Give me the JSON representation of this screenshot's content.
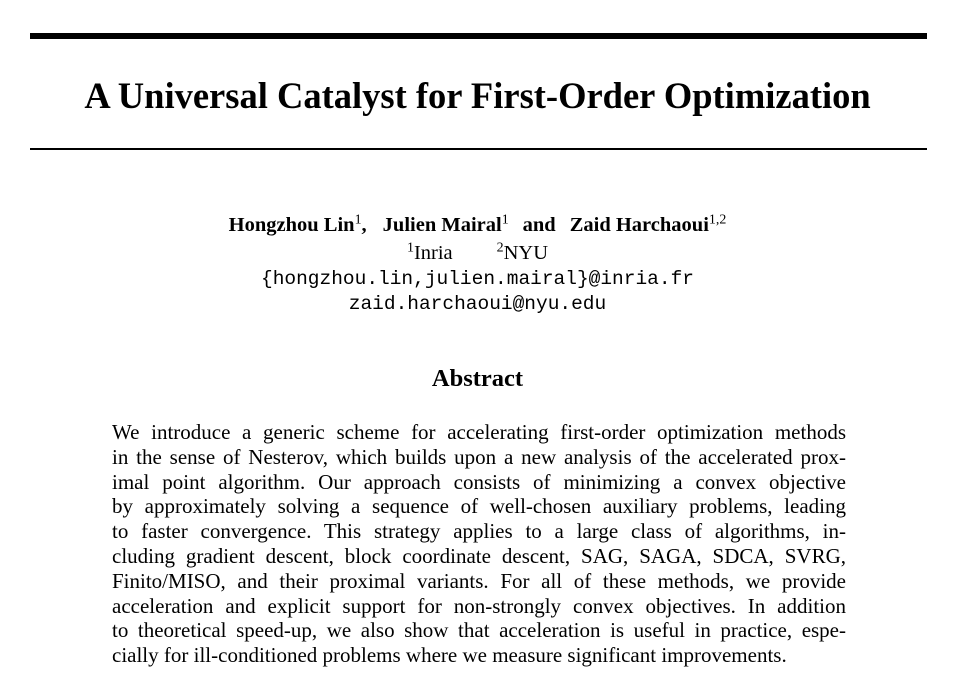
{
  "paper": {
    "title": "A Universal Catalyst for First-Order Optimization",
    "authors": [
      {
        "name": "Hongzhou Lin",
        "sup": "1"
      },
      {
        "name": "Julien Mairal",
        "sup": "1"
      },
      {
        "name": "Zaid Harchaoui",
        "sup": "1,2"
      }
    ],
    "author_separator": ",",
    "and_word": "and",
    "affiliations": [
      {
        "sup": "1",
        "name": "Inria"
      },
      {
        "sup": "2",
        "name": "NYU"
      }
    ],
    "emails": [
      "{hongzhou.lin,julien.mairal}@inria.fr",
      "zaid.harchaoui@nyu.edu"
    ],
    "abstract_heading": "Abstract",
    "abstract_lines": [
      "We introduce a generic scheme for accelerating first-order optimization methods",
      "in the sense of Nesterov, which builds upon a new analysis of the accelerated prox-",
      "imal point algorithm. Our approach consists of minimizing a convex objective",
      "by approximately solving a sequence of well-chosen auxiliary problems, leading",
      "to faster convergence. This strategy applies to a large class of algorithms, in-",
      "cluding gradient descent, block coordinate descent, SAG, SAGA, SDCA, SVRG,",
      "Finito/MISO, and their proximal variants. For all of these methods, we provide",
      "acceleration and explicit support for non-strongly convex objectives. In addition",
      "to theoretical speed-up, we also show that acceleration is useful in practice, espe-",
      "cially for ill-conditioned problems where we measure significant improvements."
    ]
  }
}
